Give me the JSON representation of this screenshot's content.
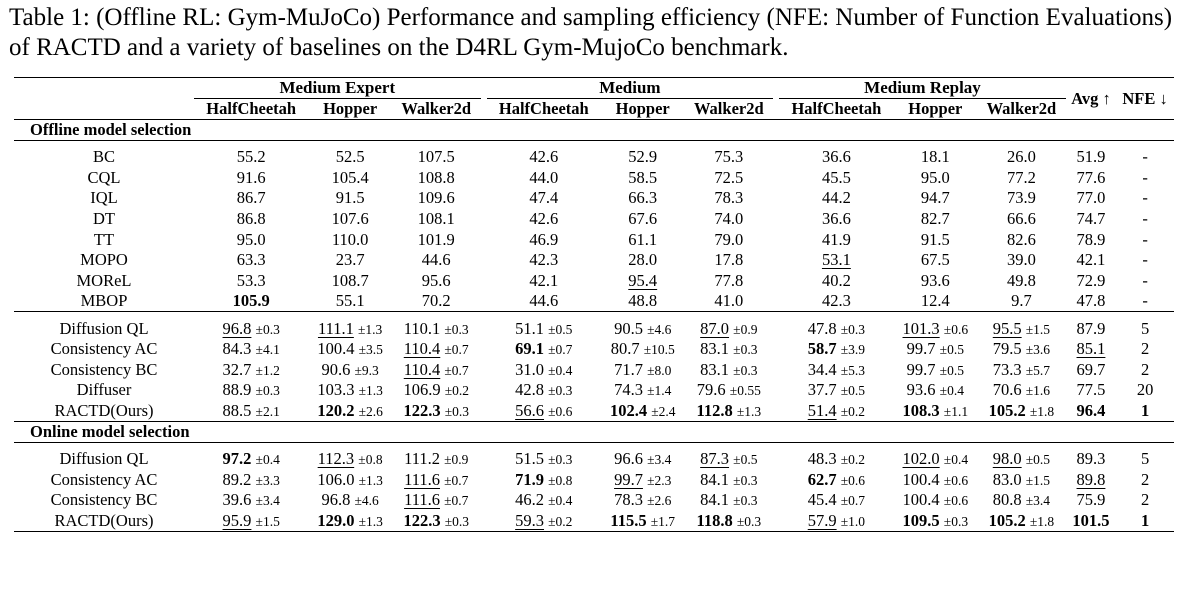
{
  "caption": "Table 1: (Offline RL: Gym-MuJoCo) Performance and sampling efficiency (NFE: Number of Function Evaluations) of RACTD and a variety of baselines on the D4RL Gym-MujoCo benchmark.",
  "header": {
    "groups": [
      "Medium Expert",
      "Medium",
      "Medium Replay"
    ],
    "envs": [
      "HalfCheetah",
      "Hopper",
      "Walker2d",
      "HalfCheetah",
      "Hopper",
      "Walker2d",
      "HalfCheetah",
      "Hopper",
      "Walker2d"
    ],
    "avg": "Avg ↑",
    "nfe": "NFE ↓"
  },
  "sections": [
    {
      "title": "Offline model selection",
      "blocks": [
        [
          {
            "name": "BC",
            "cells": [
              [
                "55.2"
              ],
              [
                "52.5"
              ],
              [
                "107.5"
              ],
              [
                "42.6"
              ],
              [
                "52.9"
              ],
              [
                "75.3"
              ],
              [
                "36.6"
              ],
              [
                "18.1"
              ],
              [
                "26.0"
              ]
            ],
            "avg": [
              "51.9"
            ],
            "nfe": "-"
          },
          {
            "name": "CQL",
            "cells": [
              [
                "91.6"
              ],
              [
                "105.4"
              ],
              [
                "108.8"
              ],
              [
                "44.0"
              ],
              [
                "58.5"
              ],
              [
                "72.5"
              ],
              [
                "45.5"
              ],
              [
                "95.0"
              ],
              [
                "77.2"
              ]
            ],
            "avg": [
              "77.6"
            ],
            "nfe": "-"
          },
          {
            "name": "IQL",
            "cells": [
              [
                "86.7"
              ],
              [
                "91.5"
              ],
              [
                "109.6"
              ],
              [
                "47.4"
              ],
              [
                "66.3"
              ],
              [
                "78.3"
              ],
              [
                "44.2"
              ],
              [
                "94.7"
              ],
              [
                "73.9"
              ]
            ],
            "avg": [
              "77.0"
            ],
            "nfe": "-"
          },
          {
            "name": "DT",
            "cells": [
              [
                "86.8"
              ],
              [
                "107.6"
              ],
              [
                "108.1"
              ],
              [
                "42.6"
              ],
              [
                "67.6"
              ],
              [
                "74.0"
              ],
              [
                "36.6"
              ],
              [
                "82.7"
              ],
              [
                "66.6"
              ]
            ],
            "avg": [
              "74.7"
            ],
            "nfe": "-"
          },
          {
            "name": "TT",
            "cells": [
              [
                "95.0"
              ],
              [
                "110.0"
              ],
              [
                "101.9"
              ],
              [
                "46.9"
              ],
              [
                "61.1"
              ],
              [
                "79.0"
              ],
              [
                "41.9"
              ],
              [
                "91.5"
              ],
              [
                "82.6"
              ]
            ],
            "avg": [
              "78.9"
            ],
            "nfe": "-"
          },
          {
            "name": "MOPO",
            "cells": [
              [
                "63.3"
              ],
              [
                "23.7"
              ],
              [
                "44.6"
              ],
              [
                "42.3"
              ],
              [
                "28.0"
              ],
              [
                "17.8"
              ],
              [
                "53.1",
                "",
                "u"
              ],
              [
                "67.5"
              ],
              [
                "39.0"
              ]
            ],
            "avg": [
              "42.1"
            ],
            "nfe": "-"
          },
          {
            "name": "MOReL",
            "cells": [
              [
                "53.3"
              ],
              [
                "108.7"
              ],
              [
                "95.6"
              ],
              [
                "42.1"
              ],
              [
                "95.4",
                "",
                "u"
              ],
              [
                "77.8"
              ],
              [
                "40.2"
              ],
              [
                "93.6"
              ],
              [
                "49.8"
              ]
            ],
            "avg": [
              "72.9"
            ],
            "nfe": "-"
          },
          {
            "name": "MBOP",
            "cells": [
              [
                "105.9",
                "",
                "b"
              ],
              [
                "55.1"
              ],
              [
                "70.2"
              ],
              [
                "44.6"
              ],
              [
                "48.8"
              ],
              [
                "41.0"
              ],
              [
                "42.3"
              ],
              [
                "12.4"
              ],
              [
                "9.7"
              ]
            ],
            "avg": [
              "47.8"
            ],
            "nfe": "-"
          }
        ],
        [
          {
            "name": "Diffusion QL",
            "cells": [
              [
                "96.8",
                "±0.3",
                "u"
              ],
              [
                "111.1",
                "±1.3",
                "u"
              ],
              [
                "110.1",
                "±0.3"
              ],
              [
                "51.1",
                "±0.5"
              ],
              [
                "90.5",
                "±4.6"
              ],
              [
                "87.0",
                "±0.9",
                "u"
              ],
              [
                "47.8",
                "±0.3"
              ],
              [
                "101.3",
                "±0.6",
                "u"
              ],
              [
                "95.5",
                "±1.5",
                "u"
              ]
            ],
            "avg": [
              "87.9"
            ],
            "nfe": "5"
          },
          {
            "name": "Consistency AC",
            "cells": [
              [
                "84.3",
                "±4.1"
              ],
              [
                "100.4",
                "±3.5"
              ],
              [
                "110.4",
                "±0.7",
                "u"
              ],
              [
                "69.1",
                "±0.7",
                "b"
              ],
              [
                "80.7",
                "±10.5"
              ],
              [
                "83.1",
                "±0.3"
              ],
              [
                "58.7",
                "±3.9",
                "b"
              ],
              [
                "99.7",
                "±0.5"
              ],
              [
                "79.5",
                "±3.6"
              ]
            ],
            "avg": [
              "85.1",
              "",
              "u"
            ],
            "nfe": "2"
          },
          {
            "name": "Consistency BC",
            "cells": [
              [
                "32.7",
                "±1.2"
              ],
              [
                "90.6",
                "±9.3"
              ],
              [
                "110.4",
                "±0.7",
                "u"
              ],
              [
                "31.0",
                "±0.4"
              ],
              [
                "71.7",
                "±8.0"
              ],
              [
                "83.1",
                "±0.3"
              ],
              [
                "34.4",
                "±5.3"
              ],
              [
                "99.7",
                "±0.5"
              ],
              [
                "73.3",
                "±5.7"
              ]
            ],
            "avg": [
              "69.7"
            ],
            "nfe": "2"
          },
          {
            "name": "Diffuser",
            "cells": [
              [
                "88.9",
                "±0.3"
              ],
              [
                "103.3",
                "±1.3"
              ],
              [
                "106.9",
                "±0.2"
              ],
              [
                "42.8",
                "±0.3"
              ],
              [
                "74.3",
                "±1.4"
              ],
              [
                "79.6",
                "±0.55"
              ],
              [
                "37.7",
                "±0.5"
              ],
              [
                "93.6",
                "±0.4"
              ],
              [
                "70.6",
                "±1.6"
              ]
            ],
            "avg": [
              "77.5"
            ],
            "nfe": "20"
          },
          {
            "name": "RACTD(Ours)",
            "cells": [
              [
                "88.5",
                "±2.1"
              ],
              [
                "120.2",
                "±2.6",
                "b"
              ],
              [
                "122.3",
                "±0.3",
                "b"
              ],
              [
                "56.6",
                "±0.6",
                "u"
              ],
              [
                "102.4",
                "±2.4",
                "b"
              ],
              [
                "112.8",
                "±1.3",
                "b"
              ],
              [
                "51.4",
                "±0.2",
                "u"
              ],
              [
                "108.3",
                "±1.1",
                "b"
              ],
              [
                "105.2",
                "±1.8",
                "b"
              ]
            ],
            "avg": [
              "96.4",
              "",
              "b"
            ],
            "nfe": "1",
            "nfe_bold": true
          }
        ]
      ]
    },
    {
      "title": "Online model selection",
      "blocks": [
        [
          {
            "name": "Diffusion QL",
            "cells": [
              [
                "97.2",
                "±0.4",
                "b"
              ],
              [
                "112.3",
                "±0.8",
                "u"
              ],
              [
                "111.2",
                "±0.9"
              ],
              [
                "51.5",
                "±0.3"
              ],
              [
                "96.6",
                "±3.4"
              ],
              [
                "87.3",
                "±0.5",
                "u"
              ],
              [
                "48.3",
                "±0.2"
              ],
              [
                "102.0",
                "±0.4",
                "u"
              ],
              [
                "98.0",
                "±0.5",
                "u"
              ]
            ],
            "avg": [
              "89.3"
            ],
            "nfe": "5"
          },
          {
            "name": "Consistency AC",
            "cells": [
              [
                "89.2",
                "±3.3"
              ],
              [
                "106.0",
                "±1.3"
              ],
              [
                "111.6",
                "±0.7",
                "u"
              ],
              [
                "71.9",
                "±0.8",
                "b"
              ],
              [
                "99.7",
                "±2.3",
                "u"
              ],
              [
                "84.1",
                "±0.3"
              ],
              [
                "62.7",
                "±0.6",
                "b"
              ],
              [
                "100.4",
                "±0.6"
              ],
              [
                "83.0",
                "±1.5"
              ]
            ],
            "avg": [
              "89.8",
              "",
              "u"
            ],
            "nfe": "2"
          },
          {
            "name": "Consistency BC",
            "cells": [
              [
                "39.6",
                "±3.4"
              ],
              [
                "96.8",
                "±4.6"
              ],
              [
                "111.6",
                "±0.7",
                "u"
              ],
              [
                "46.2",
                "±0.4"
              ],
              [
                "78.3",
                "±2.6"
              ],
              [
                "84.1",
                "±0.3"
              ],
              [
                "45.4",
                "±0.7"
              ],
              [
                "100.4",
                "±0.6"
              ],
              [
                "80.8",
                "±3.4"
              ]
            ],
            "avg": [
              "75.9"
            ],
            "nfe": "2"
          },
          {
            "name": "RACTD(Ours)",
            "cells": [
              [
                "95.9",
                "±1.5",
                "u"
              ],
              [
                "129.0",
                "±1.3",
                "b"
              ],
              [
                "122.3",
                "±0.3",
                "b"
              ],
              [
                "59.3",
                "±0.2",
                "u"
              ],
              [
                "115.5",
                "±1.7",
                "b"
              ],
              [
                "118.8",
                "±0.3",
                "b"
              ],
              [
                "57.9",
                "±1.0",
                "u"
              ],
              [
                "109.5",
                "±0.3",
                "b"
              ],
              [
                "105.2",
                "±1.8",
                "b"
              ]
            ],
            "avg": [
              "101.5",
              "",
              "b"
            ],
            "nfe": "1",
            "nfe_bold": true
          }
        ]
      ]
    }
  ]
}
